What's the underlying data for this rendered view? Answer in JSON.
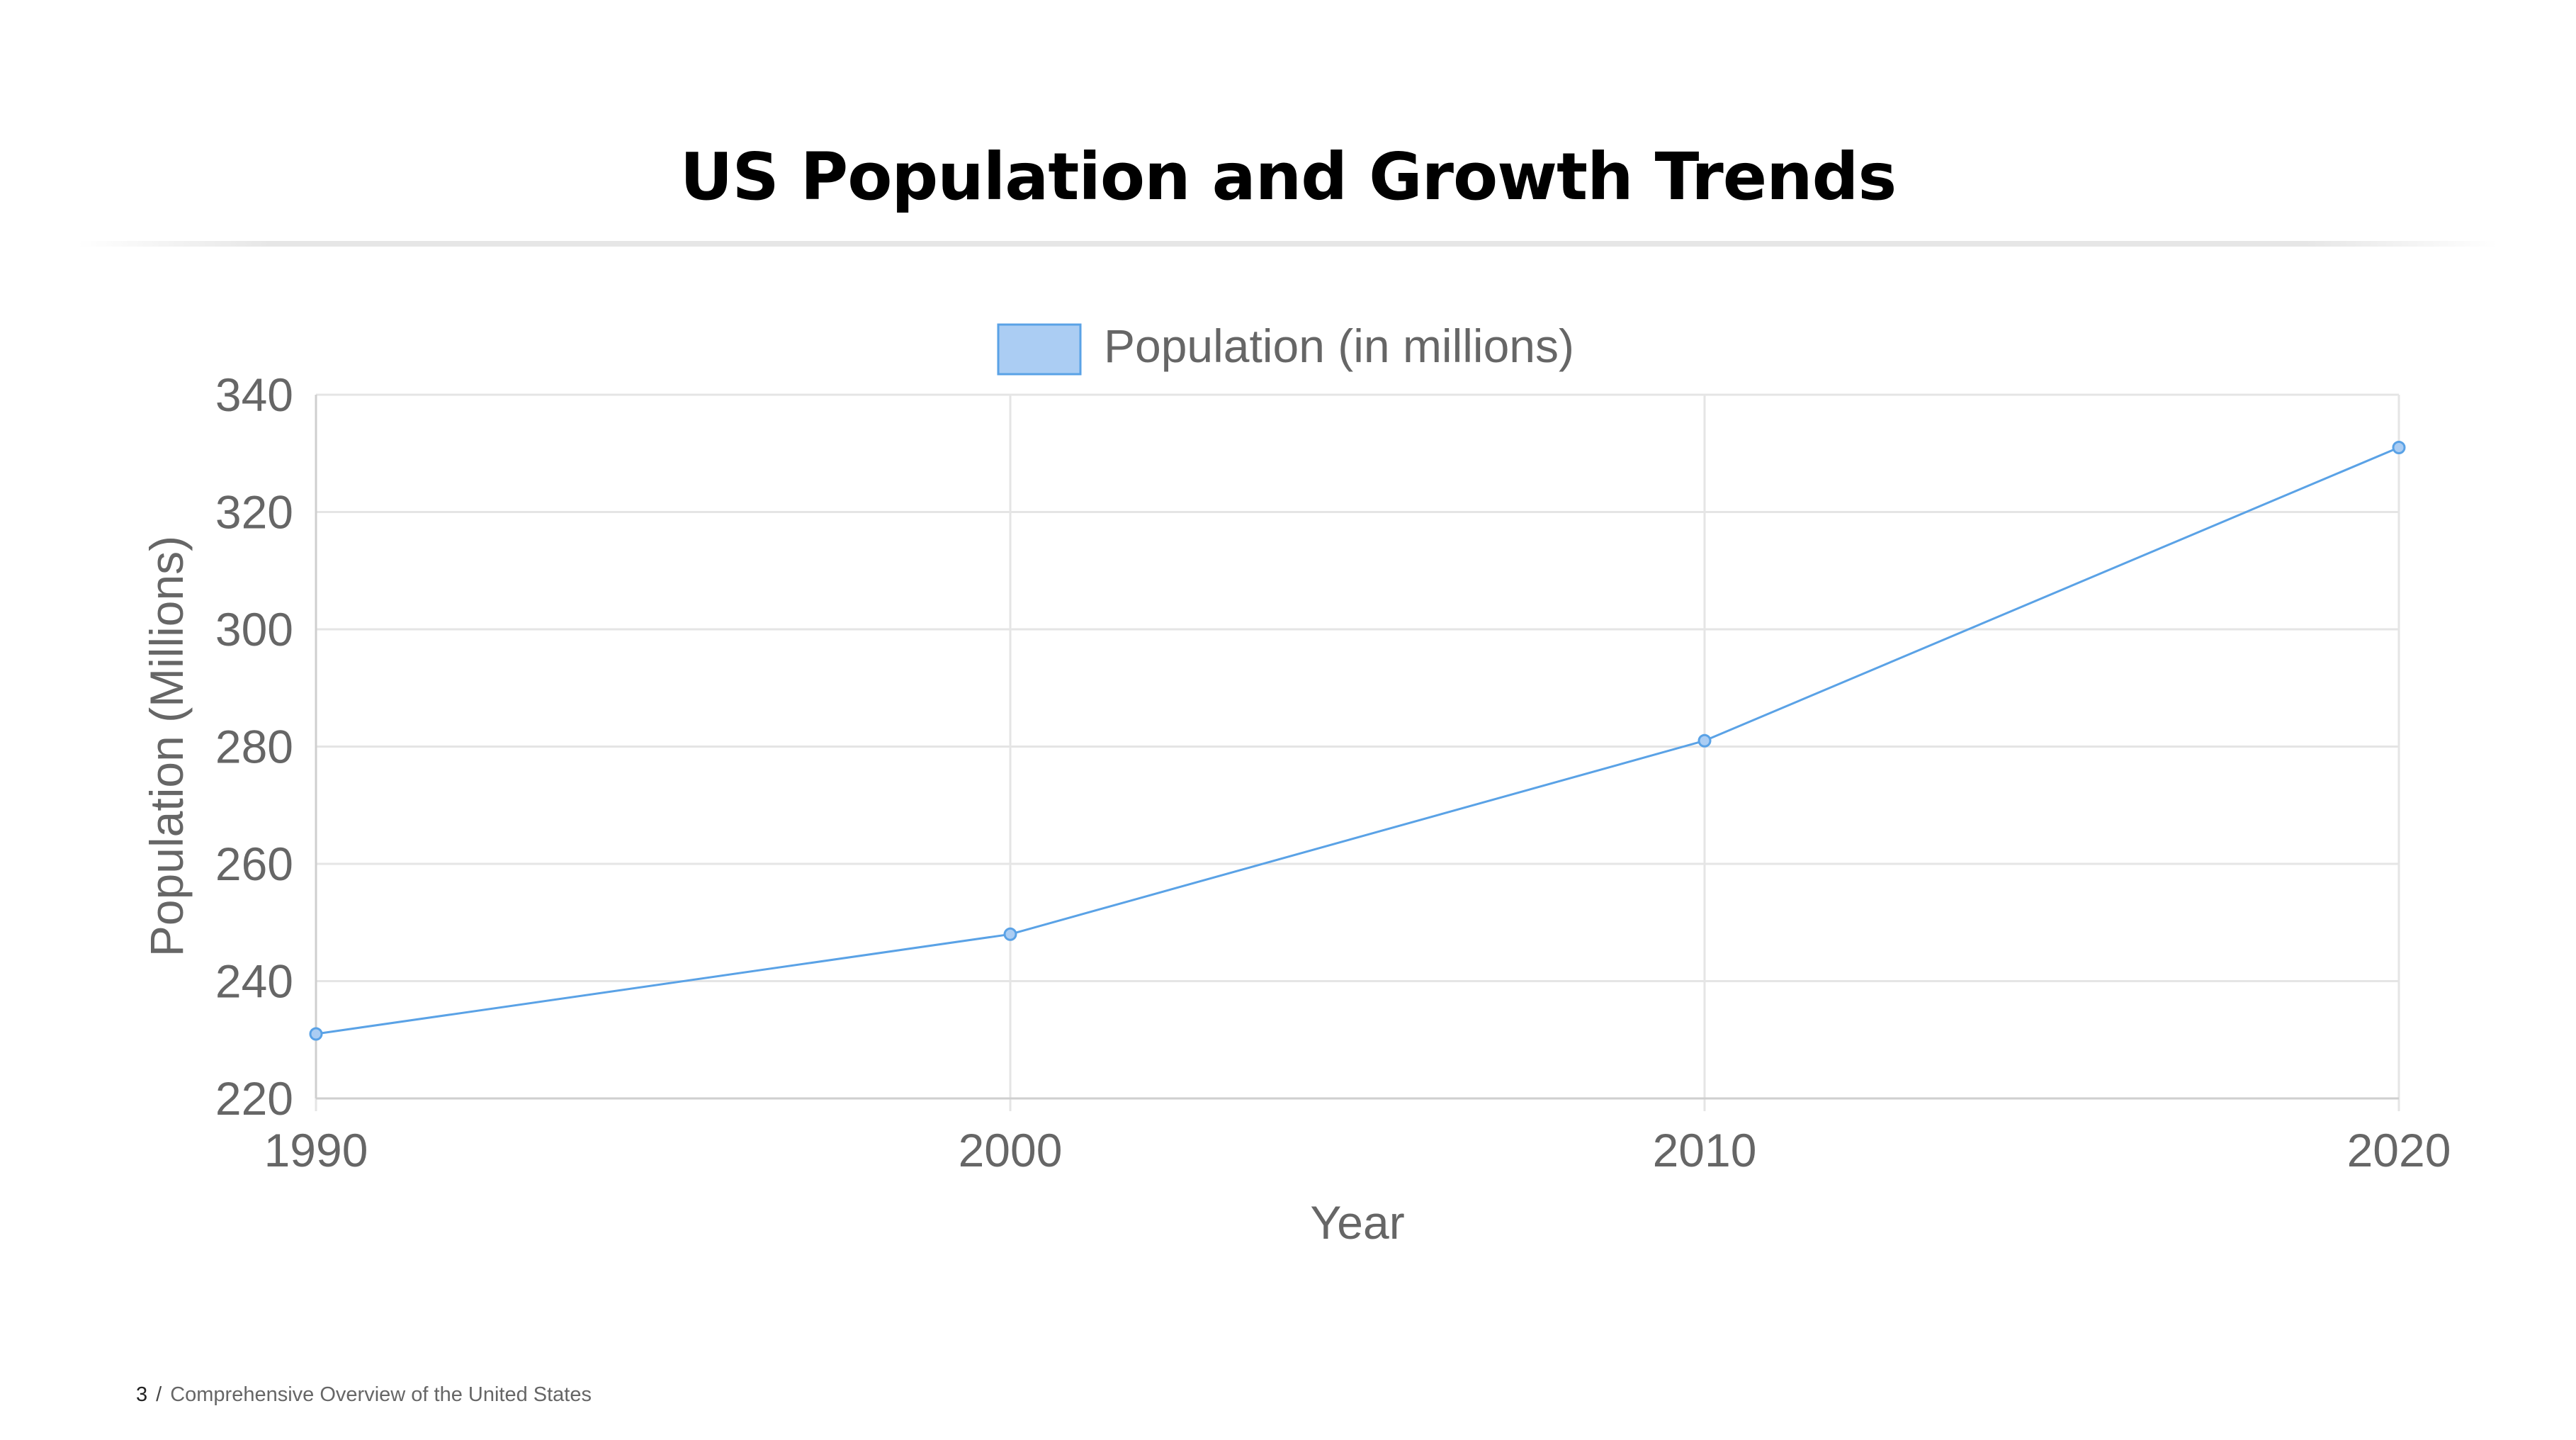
{
  "slide": {
    "title": "US Population and Growth Trends",
    "page_number": "3",
    "separator": "/",
    "deck_title": "Comprehensive Overview of the United States"
  },
  "chart_data": {
    "type": "line",
    "title": "",
    "xlabel": "Year",
    "ylabel": "Population (Millions)",
    "categories": [
      "1990",
      "2000",
      "2010",
      "2020"
    ],
    "series": [
      {
        "name": "Population (in millions)",
        "values": [
          231,
          248,
          281,
          331
        ],
        "color": "#5aa2e6",
        "fill": "#abcdf3"
      }
    ],
    "ylim": [
      220,
      340
    ],
    "yticks": [
      220,
      240,
      260,
      280,
      300,
      320,
      340
    ],
    "grid": true,
    "legend": "top-center"
  },
  "colors": {
    "gridline": "#e5e5e5",
    "axis_line": "#cfcfcf",
    "tick_text": "#666666",
    "title_text": "#000000"
  }
}
